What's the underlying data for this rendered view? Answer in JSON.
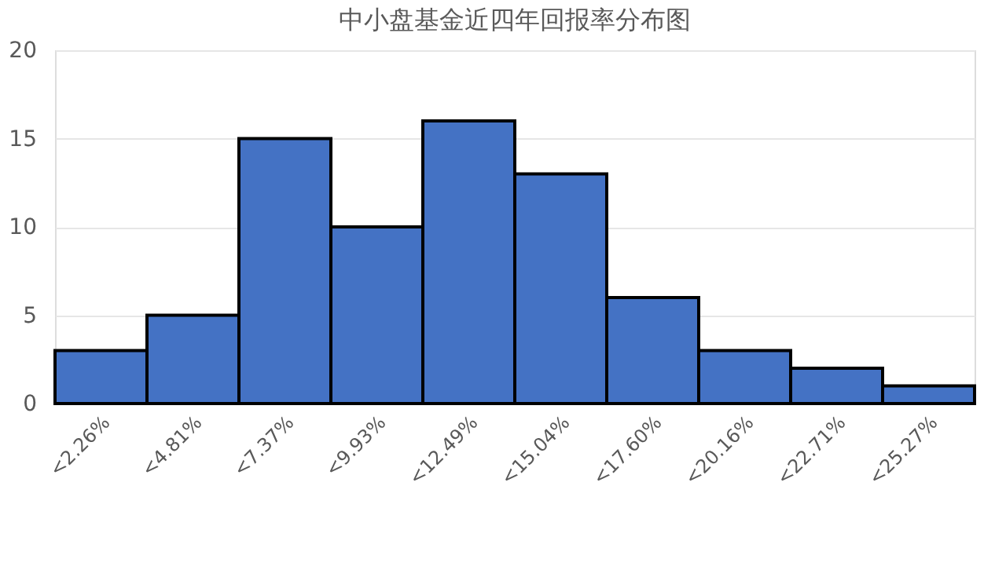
{
  "chart_data": {
    "type": "bar",
    "title": "中小盘基金近四年回报率分布图",
    "categories": [
      "<2.26%",
      "<4.81%",
      "<7.37%",
      "<9.93%",
      "<12.49%",
      "<15.04%",
      "<17.60%",
      "<20.16%",
      "<22.71%",
      "<25.27%"
    ],
    "values": [
      3,
      5,
      15,
      10,
      16,
      13,
      6,
      3,
      2,
      1
    ],
    "color": "#4472c4",
    "ylim": [
      0,
      20
    ],
    "yticks": [
      0,
      5,
      10,
      15,
      20
    ],
    "grid": "y"
  }
}
